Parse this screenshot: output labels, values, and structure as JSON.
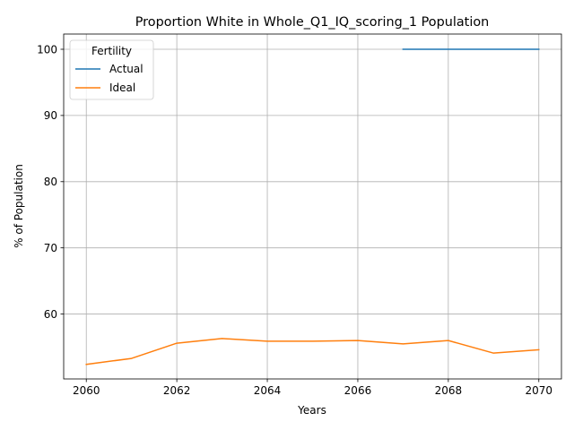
{
  "chart_data": {
    "type": "line",
    "title": "Proportion White in Whole_Q1_IQ_scoring_1 Population",
    "xlabel": "Years",
    "ylabel": "% of Population",
    "xlim": [
      2059.5,
      2070.5
    ],
    "ylim": [
      50.2,
      102.3
    ],
    "xticks": [
      2060,
      2062,
      2064,
      2066,
      2068,
      2070
    ],
    "yticks": [
      60,
      70,
      80,
      90,
      100
    ],
    "grid": true,
    "legend": {
      "title": "Fertility",
      "position": "top-left"
    },
    "series": [
      {
        "name": "Actual",
        "color": "#1f77b4",
        "x": [
          2067,
          2068,
          2069,
          2070
        ],
        "y": [
          100,
          100,
          100,
          100
        ]
      },
      {
        "name": "Ideal",
        "color": "#ff7f0e",
        "x": [
          2060,
          2061,
          2062,
          2063,
          2064,
          2065,
          2066,
          2067,
          2068,
          2069,
          2070
        ],
        "y": [
          52.4,
          53.3,
          55.6,
          56.3,
          55.9,
          55.9,
          56.0,
          55.5,
          56.0,
          54.1,
          54.6
        ]
      }
    ]
  }
}
